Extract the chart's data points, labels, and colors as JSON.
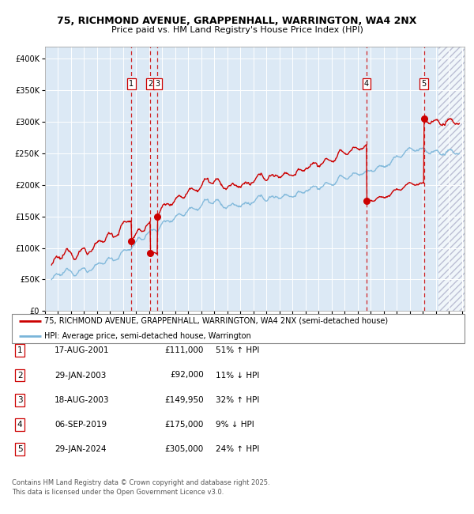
{
  "title_line1": "75, RICHMOND AVENUE, GRAPPENHALL, WARRINGTON, WA4 2NX",
  "title_line2": "Price paid vs. HM Land Registry's House Price Index (HPI)",
  "background_color": "#dce9f5",
  "plot_bg_color": "#dce9f5",
  "hpi_line_color": "#7ab5d9",
  "price_line_color": "#cc0000",
  "marker_color": "#cc0000",
  "vline_color": "#cc0000",
  "ylim": [
    0,
    420000
  ],
  "xlim_start": 1995.3,
  "xlim_end": 2027.2,
  "yticks": [
    0,
    50000,
    100000,
    150000,
    200000,
    250000,
    300000,
    350000,
    400000
  ],
  "ytick_labels": [
    "£0",
    "£50K",
    "£100K",
    "£150K",
    "£200K",
    "£250K",
    "£300K",
    "£350K",
    "£400K"
  ],
  "sales": [
    {
      "label": "1",
      "date_year": 2001.63,
      "price": 111000
    },
    {
      "label": "2",
      "date_year": 2003.08,
      "price": 92000
    },
    {
      "label": "3",
      "date_year": 2003.63,
      "price": 149950
    },
    {
      "label": "4",
      "date_year": 2019.68,
      "price": 175000
    },
    {
      "label": "5",
      "date_year": 2024.08,
      "price": 305000
    }
  ],
  "table_rows": [
    {
      "num": "1",
      "date": "17-AUG-2001",
      "price": "£111,000",
      "hpi": "51% ↑ HPI"
    },
    {
      "num": "2",
      "date": "29-JAN-2003",
      "price": "£92,000",
      "hpi": "11% ↓ HPI"
    },
    {
      "num": "3",
      "date": "18-AUG-2003",
      "price": "£149,950",
      "hpi": "32% ↑ HPI"
    },
    {
      "num": "4",
      "date": "06-SEP-2019",
      "price": "£175,000",
      "hpi": "9% ↓ HPI"
    },
    {
      "num": "5",
      "date": "29-JAN-2024",
      "price": "£305,000",
      "hpi": "24% ↑ HPI"
    }
  ],
  "legend_line1": "75, RICHMOND AVENUE, GRAPPENHALL, WARRINGTON, WA4 2NX (semi-detached house)",
  "legend_line2": "HPI: Average price, semi-detached house, Warrington",
  "footer": "Contains HM Land Registry data © Crown copyright and database right 2025.\nThis data is licensed under the Open Government Licence v3.0."
}
